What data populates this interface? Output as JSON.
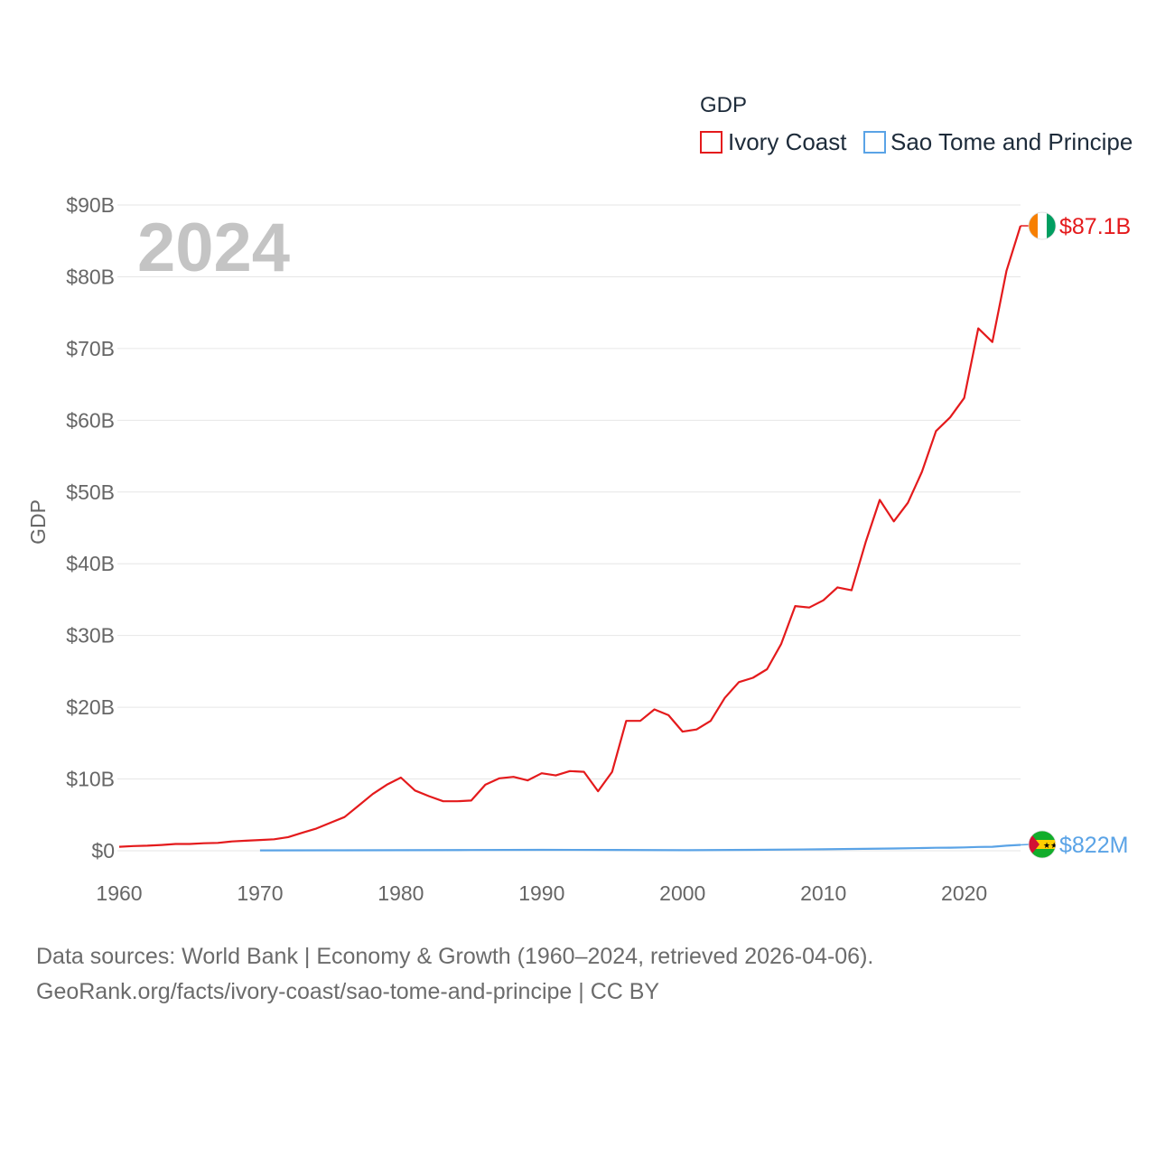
{
  "chart_data": {
    "type": "line",
    "title": "GDP",
    "ylabel": "GDP",
    "xlabel": "",
    "xlim": [
      1960,
      2024
    ],
    "ylim": [
      0,
      90
    ],
    "y_unit": "billions USD",
    "x_ticks": [
      1960,
      1970,
      1980,
      1990,
      2000,
      2010,
      2020
    ],
    "y_ticks": [
      {
        "value": 0,
        "label": "$0"
      },
      {
        "value": 10,
        "label": "$10B"
      },
      {
        "value": 20,
        "label": "$20B"
      },
      {
        "value": 30,
        "label": "$30B"
      },
      {
        "value": 40,
        "label": "$40B"
      },
      {
        "value": 50,
        "label": "$50B"
      },
      {
        "value": 60,
        "label": "$60B"
      },
      {
        "value": 70,
        "label": "$70B"
      },
      {
        "value": 80,
        "label": "$80B"
      },
      {
        "value": 90,
        "label": "$90B"
      }
    ],
    "grid": true,
    "legend_position": "top-right",
    "year_overlay": "2024",
    "series": [
      {
        "name": "Ivory Coast",
        "color": "#e41a1c",
        "end_label": "$87.1B",
        "flag_icon": "ivory-coast-flag-icon",
        "x": [
          1960,
          1961,
          1962,
          1963,
          1964,
          1965,
          1966,
          1967,
          1968,
          1969,
          1970,
          1971,
          1972,
          1973,
          1974,
          1975,
          1976,
          1977,
          1978,
          1979,
          1980,
          1981,
          1982,
          1983,
          1984,
          1985,
          1986,
          1987,
          1988,
          1989,
          1990,
          1991,
          1992,
          1993,
          1994,
          1995,
          1996,
          1997,
          1998,
          1999,
          2000,
          2001,
          2002,
          2003,
          2004,
          2005,
          2006,
          2007,
          2008,
          2009,
          2010,
          2011,
          2012,
          2013,
          2014,
          2015,
          2016,
          2017,
          2018,
          2019,
          2020,
          2021,
          2022,
          2023,
          2024
        ],
        "values": [
          0.55,
          0.65,
          0.7,
          0.8,
          0.95,
          0.95,
          1.05,
          1.1,
          1.3,
          1.4,
          1.5,
          1.6,
          1.9,
          2.5,
          3.1,
          3.9,
          4.7,
          6.3,
          7.9,
          9.2,
          10.2,
          8.4,
          7.6,
          6.9,
          6.9,
          7.0,
          9.2,
          10.1,
          10.3,
          9.8,
          10.8,
          10.5,
          11.1,
          11.0,
          8.3,
          11.0,
          18.1,
          18.1,
          19.7,
          18.9,
          16.6,
          16.9,
          18.1,
          21.3,
          23.5,
          24.1,
          25.3,
          28.8,
          34.1,
          33.9,
          34.9,
          36.7,
          36.3,
          43.0,
          48.9,
          45.9,
          48.5,
          52.8,
          58.5,
          60.4,
          63.1,
          72.8,
          70.9,
          80.8,
          87.1
        ]
      },
      {
        "name": "Sao Tome and Principe",
        "color": "#5aa3e6",
        "end_label": "$822M",
        "flag_icon": "sao-tome-flag-icon",
        "x": [
          1970,
          1975,
          1980,
          1985,
          1990,
          1995,
          2000,
          2005,
          2010,
          2015,
          2017,
          2018,
          2019,
          2020,
          2021,
          2022,
          2023,
          2024
        ],
        "values": [
          0.05,
          0.06,
          0.08,
          0.1,
          0.12,
          0.11,
          0.08,
          0.13,
          0.2,
          0.32,
          0.38,
          0.42,
          0.43,
          0.47,
          0.53,
          0.55,
          0.7,
          0.82
        ]
      }
    ]
  },
  "footer": {
    "line1": "Data sources: World Bank | Economy & Growth (1960–2024, retrieved 2026-04-06).",
    "line2": "GeoRank.org/facts/ivory-coast/sao-tome-and-principe | CC BY"
  }
}
